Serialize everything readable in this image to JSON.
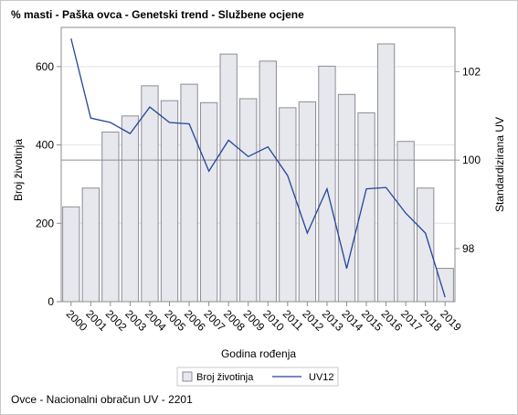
{
  "title": "% masti - Paška ovca - Genetski trend - Službene ocjene",
  "footer": "Ovce - Nacionalni obračun UV - 2201",
  "colors": {
    "bar_fill": "#e6e8ee",
    "bar_stroke": "#8c8c96",
    "line": "#23449b",
    "grid": "#e3e3e3",
    "refline": "#8c8c8c",
    "axis": "#8c8c8c"
  },
  "chart_data": {
    "type": "bar",
    "xlabel": "Godina rođenja",
    "ylabel": "Broj životinja",
    "y2label": "Standardizirana UV",
    "ylim": [
      0,
      700
    ],
    "y2lim": [
      96.8,
      103.0
    ],
    "yticks": [
      0,
      200,
      400,
      600
    ],
    "y2ticks": [
      98,
      100,
      102
    ],
    "reference_line_y2": 100,
    "grid": true,
    "legend_position": "bottom",
    "categories": [
      "2000",
      "2001",
      "2002",
      "2003",
      "2004",
      "2005",
      "2006",
      "2007",
      "2008",
      "2009",
      "2010",
      "2011",
      "2012",
      "2013",
      "2014",
      "2015",
      "2016",
      "2017",
      "2018",
      "2019"
    ],
    "series": [
      {
        "name": "Broj životinja",
        "kind": "bar",
        "values": [
          242,
          290,
          433,
          474,
          551,
          513,
          555,
          508,
          632,
          518,
          614,
          495,
          510,
          601,
          529,
          482,
          658,
          409,
          290,
          85
        ]
      },
      {
        "name": "UV12",
        "kind": "line",
        "axis": "y2",
        "values": [
          102.75,
          100.95,
          100.85,
          100.6,
          101.2,
          100.85,
          100.82,
          99.75,
          100.45,
          100.08,
          100.3,
          99.65,
          98.35,
          99.35,
          97.55,
          99.35,
          99.38,
          98.8,
          98.35,
          96.9
        ]
      }
    ]
  }
}
